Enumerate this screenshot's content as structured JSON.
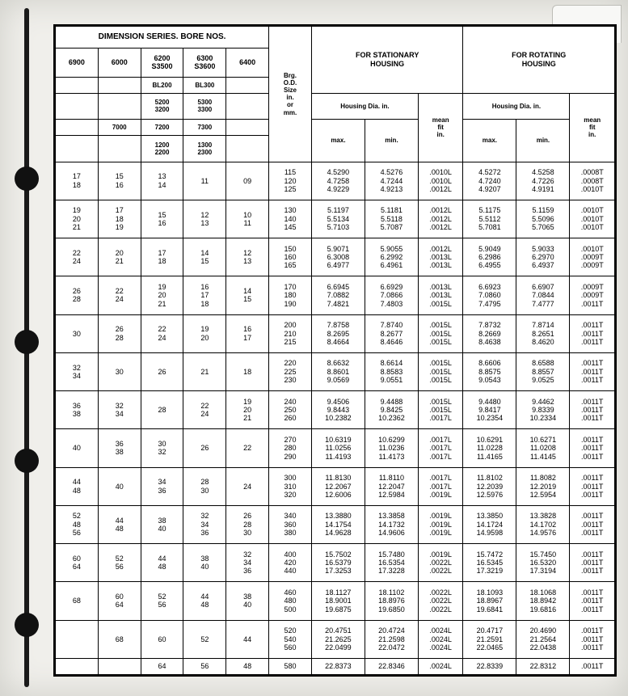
{
  "headers": {
    "dimSeries": "DIMENSION SERIES. BORE NOS.",
    "stationary": "FOR STATIONARY\nHOUSING",
    "rotating": "FOR ROTATING\nHOUSING",
    "brgSize": "Brg.\nO.D.\nSize\nin.\nor\nmm.",
    "housingDia": "Housing Dia. in.",
    "meanFit": "mean\nfit\nin.",
    "max": "max.",
    "min": "min.",
    "series": [
      "6900",
      "6000",
      "6200\nS3500",
      "6300\nS3600",
      "6400"
    ],
    "sub": [
      [
        "",
        "",
        "BL200",
        "BL300",
        ""
      ],
      [
        "",
        "",
        "5200\n3200",
        "5300\n3300",
        ""
      ],
      [
        "",
        "7000",
        "7200",
        "7300",
        ""
      ],
      [
        "",
        "",
        "1200\n2200",
        "1300\n2300",
        ""
      ]
    ]
  },
  "rows": [
    {
      "s": [
        "17\n18",
        "15\n16",
        "13\n14",
        "11",
        "09"
      ],
      "sz": "115\n120\n125",
      "sm": "4.5290\n4.7258\n4.9229",
      "sn": "4.5276\n4.7244\n4.9213",
      "sf": ".0010L\n.0010L\n.0012L",
      "rm": "4.5272\n4.7240\n4.9207",
      "rn": "4.5258\n4.7226\n4.9191",
      "rf": ".0008T\n.0008T\n.0010T"
    },
    {
      "s": [
        "19\n20\n21",
        "17\n18\n19",
        "15\n16",
        "12\n13",
        "10\n11"
      ],
      "sz": "130\n140\n145",
      "sm": "5.1197\n5.5134\n5.7103",
      "sn": "5.1181\n5.5118\n5.7087",
      "sf": ".0012L\n.0012L\n.0012L",
      "rm": "5.1175\n5.5112\n5.7081",
      "rn": "5.1159\n5.5096\n5.7065",
      "rf": ".0010T\n.0010T\n.0010T"
    },
    {
      "s": [
        "22\n24",
        "20\n21",
        "17\n18",
        "14\n15",
        "12\n13"
      ],
      "sz": "150\n160\n165",
      "sm": "5.9071\n6.3008\n6.4977",
      "sn": "5.9055\n6.2992\n6.4961",
      "sf": ".0012L\n.0013L\n.0013L",
      "rm": "5.9049\n6.2986\n6.4955",
      "rn": "5.9033\n6.2970\n6.4937",
      "rf": ".0010T\n.0009T\n.0009T"
    },
    {
      "s": [
        "26\n28",
        "22\n24",
        "19\n20\n21",
        "16\n17\n18",
        "14\n15"
      ],
      "sz": "170\n180\n190",
      "sm": "6.6945\n7.0882\n7.4821",
      "sn": "6.6929\n7.0866\n7.4803",
      "sf": ".0013L\n.0013L\n.0015L",
      "rm": "6.6923\n7.0860\n7.4795",
      "rn": "6.6907\n7.0844\n7.4777",
      "rf": ".0009T\n.0009T\n.0011T"
    },
    {
      "s": [
        "30",
        "26\n28",
        "22\n24",
        "19\n20",
        "16\n17"
      ],
      "sz": "200\n210\n215",
      "sm": "7.8758\n8.2695\n8.4664",
      "sn": "7.8740\n8.2677\n8.4646",
      "sf": ".0015L\n.0015L\n.0015L",
      "rm": "7.8732\n8.2669\n8.4638",
      "rn": "7.8714\n8.2651\n8.4620",
      "rf": ".0011T\n.0011T\n.0011T"
    },
    {
      "s": [
        "32\n34",
        "30",
        "26",
        "21",
        "18"
      ],
      "sz": "220\n225\n230",
      "sm": "8.6632\n8.8601\n9.0569",
      "sn": "8.6614\n8.8583\n9.0551",
      "sf": ".0015L\n.0015L\n.0015L",
      "rm": "8.6606\n8.8575\n9.0543",
      "rn": "8.6588\n8.8557\n9.0525",
      "rf": ".0011T\n.0011T\n.0011T"
    },
    {
      "s": [
        "36\n38",
        "32\n34",
        "28",
        "22\n24",
        "19\n20\n21"
      ],
      "sz": "240\n250\n260",
      "sm": "9.4506\n9.8443\n10.2382",
      "sn": "9.4488\n9.8425\n10.2362",
      "sf": ".0015L\n.0015L\n.0017L",
      "rm": "9.4480\n9.8417\n10.2354",
      "rn": "9.4462\n9.8339\n10.2334",
      "rf": ".0011T\n.0011T\n.0011T"
    },
    {
      "s": [
        "40",
        "36\n38",
        "30\n32",
        "26",
        "22"
      ],
      "sz": "270\n280\n290",
      "sm": "10.6319\n11.0256\n11.4193",
      "sn": "10.6299\n11.0236\n11.4173",
      "sf": ".0017L\n.0017L\n.0017L",
      "rm": "10.6291\n11.0228\n11.4165",
      "rn": "10.6271\n11.0208\n11.4145",
      "rf": ".0011T\n.0011T\n.0011T"
    },
    {
      "s": [
        "44\n48",
        "40",
        "34\n36",
        "28\n30",
        "24"
      ],
      "sz": "300\n310\n320",
      "sm": "11.8130\n12.2067\n12.6006",
      "sn": "11.8110\n12.2047\n12.5984",
      "sf": ".0017L\n.0017L\n.0019L",
      "rm": "11.8102\n12.2039\n12.5976",
      "rn": "11.8082\n12.2019\n12.5954",
      "rf": ".0011T\n.0011T\n.0011T"
    },
    {
      "s": [
        "52\n48\n56",
        "44\n48",
        "38\n40",
        "32\n34\n36",
        "26\n28\n30"
      ],
      "sz": "340\n360\n380",
      "sm": "13.3880\n14.1754\n14.9628",
      "sn": "13.3858\n14.1732\n14.9606",
      "sf": ".0019L\n.0019L\n.0019L",
      "rm": "13.3850\n14.1724\n14.9598",
      "rn": "13.3828\n14.1702\n14.9576",
      "rf": ".0011T\n.0011T\n.0011T"
    },
    {
      "s": [
        "60\n64",
        "52\n56",
        "44\n48",
        "38\n40",
        "32\n34\n36"
      ],
      "sz": "400\n420\n440",
      "sm": "15.7502\n16.5379\n17.3253",
      "sn": "15.7480\n16.5354\n17.3228",
      "sf": ".0019L\n.0022L\n.0022L",
      "rm": "15.7472\n16.5345\n17.3219",
      "rn": "15.7450\n16.5320\n17.3194",
      "rf": ".0011T\n.0011T\n.0011T"
    },
    {
      "s": [
        "68",
        "60\n64",
        "52\n56",
        "44\n48",
        "38\n40"
      ],
      "sz": "460\n480\n500",
      "sm": "18.1127\n18.9001\n19.6875",
      "sn": "18.1102\n18.8976\n19.6850",
      "sf": ".0022L\n.0022L\n.0022L",
      "rm": "18.1093\n18.8967\n19.6841",
      "rn": "18.1068\n18.8942\n19.6816",
      "rf": ".0011T\n.0011T\n.0011T"
    },
    {
      "s": [
        "",
        "68",
        "60",
        "52",
        "44"
      ],
      "sz": "520\n540\n560",
      "sm": "20.4751\n21.2625\n22.0499",
      "sn": "20.4724\n21.2598\n22.0472",
      "sf": ".0024L\n.0024L\n.0024L",
      "rm": "20.4717\n21.2591\n22.0465",
      "rn": "20.4690\n21.2564\n22.0438",
      "rf": ".0011T\n.0011T\n.0011T"
    },
    {
      "s": [
        "",
        "",
        "64",
        "56",
        "48"
      ],
      "sz": "580",
      "sm": "22.8373",
      "sn": "22.8346",
      "sf": ".0024L",
      "rm": "22.8339",
      "rn": "22.8312",
      "rf": ".0011T"
    }
  ],
  "style": {
    "page_bg": "#e8e8e6",
    "paper_bg": "#f0efeb",
    "table_bg": "#ffffff",
    "border": "#000000",
    "font": "Arial",
    "header_fontsize": 10,
    "cell_fontsize": 9
  }
}
